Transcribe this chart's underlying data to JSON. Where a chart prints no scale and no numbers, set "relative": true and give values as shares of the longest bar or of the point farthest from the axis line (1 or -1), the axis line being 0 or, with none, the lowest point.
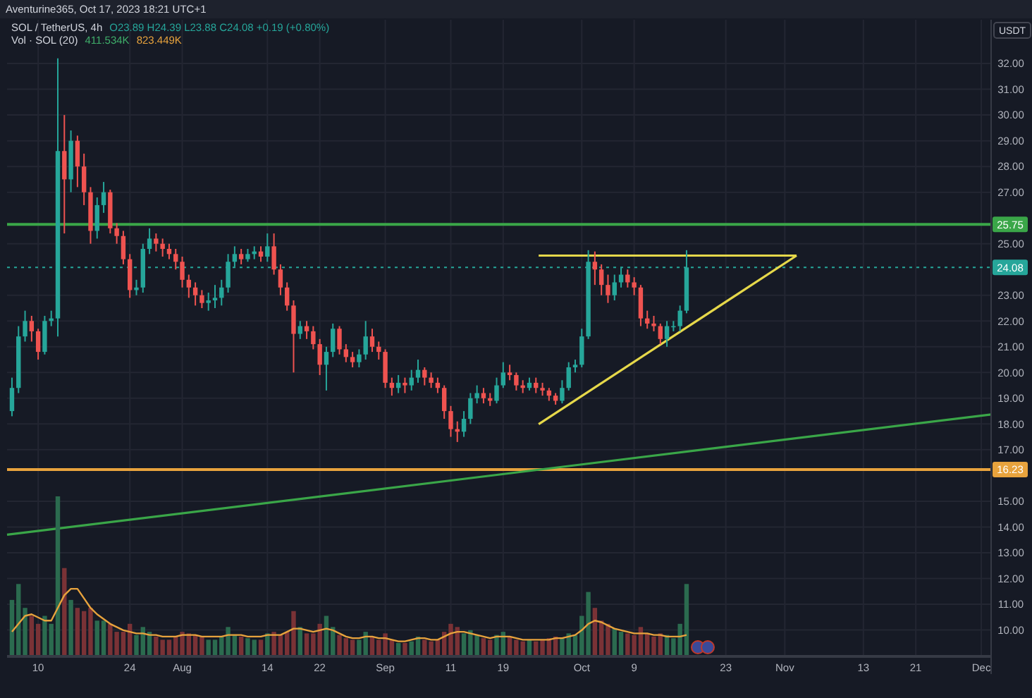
{
  "chart_data": [
    {
      "type": "candlestick",
      "title": "SOL / TetherUS, 4h",
      "subtitle": "O23.89 H24.39 L23.88 C24.08 +0.19 (+0.80%)",
      "ylabel": "USDT",
      "annotations": [
        "Aventurine365, Oct 17, 2023 18:21 UTC+1"
      ],
      "x": [
        "2023-07-06",
        "2023-07-07",
        "2023-07-08",
        "2023-07-09",
        "2023-07-10",
        "2023-07-11",
        "2023-07-12",
        "2023-07-13",
        "2023-07-14",
        "2023-07-15",
        "2023-07-16",
        "2023-07-17",
        "2023-07-18",
        "2023-07-19",
        "2023-07-20",
        "2023-07-21",
        "2023-07-22",
        "2023-07-23",
        "2023-07-24",
        "2023-07-25",
        "2023-07-26",
        "2023-07-27",
        "2023-07-28",
        "2023-07-29",
        "2023-07-30",
        "2023-07-31",
        "2023-08-01",
        "2023-08-02",
        "2023-08-03",
        "2023-08-04",
        "2023-08-05",
        "2023-08-06",
        "2023-08-07",
        "2023-08-08",
        "2023-08-09",
        "2023-08-10",
        "2023-08-11",
        "2023-08-12",
        "2023-08-13",
        "2023-08-14",
        "2023-08-15",
        "2023-08-16",
        "2023-08-17",
        "2023-08-18",
        "2023-08-19",
        "2023-08-20",
        "2023-08-21",
        "2023-08-22",
        "2023-08-23",
        "2023-08-24",
        "2023-08-25",
        "2023-08-26",
        "2023-08-27",
        "2023-08-28",
        "2023-08-29",
        "2023-08-30",
        "2023-08-31",
        "2023-09-01",
        "2023-09-02",
        "2023-09-03",
        "2023-09-04",
        "2023-09-05",
        "2023-09-06",
        "2023-09-07",
        "2023-09-08",
        "2023-09-09",
        "2023-09-10",
        "2023-09-11",
        "2023-09-12",
        "2023-09-13",
        "2023-09-14",
        "2023-09-15",
        "2023-09-16",
        "2023-09-17",
        "2023-09-18",
        "2023-09-19",
        "2023-09-20",
        "2023-09-21",
        "2023-09-22",
        "2023-09-23",
        "2023-09-24",
        "2023-09-25",
        "2023-09-26",
        "2023-09-27",
        "2023-09-28",
        "2023-09-29",
        "2023-09-30",
        "2023-10-01",
        "2023-10-02",
        "2023-10-03",
        "2023-10-04",
        "2023-10-05",
        "2023-10-06",
        "2023-10-07",
        "2023-10-08",
        "2023-10-09",
        "2023-10-10",
        "2023-10-11",
        "2023-10-12",
        "2023-10-13",
        "2023-10-14",
        "2023-10-15",
        "2023-10-16",
        "2023-10-17"
      ],
      "ohlc": [
        [
          18.5,
          19.8,
          18.3,
          19.4
        ],
        [
          19.4,
          21.8,
          19.2,
          21.4
        ],
        [
          21.4,
          22.4,
          21.2,
          22.0
        ],
        [
          22.0,
          22.2,
          21.2,
          21.6
        ],
        [
          21.6,
          21.7,
          20.5,
          20.8
        ],
        [
          20.8,
          22.2,
          20.7,
          22.0
        ],
        [
          22.0,
          22.4,
          21.8,
          22.1
        ],
        [
          22.1,
          32.2,
          21.4,
          28.6
        ],
        [
          28.6,
          30.0,
          25.4,
          27.5
        ],
        [
          27.5,
          29.4,
          27.0,
          29.0
        ],
        [
          29.0,
          29.2,
          27.2,
          28.0
        ],
        [
          28.0,
          28.5,
          26.5,
          27.0
        ],
        [
          27.0,
          27.2,
          25.0,
          25.5
        ],
        [
          25.5,
          26.8,
          25.2,
          26.5
        ],
        [
          26.5,
          27.4,
          26.2,
          27.0
        ],
        [
          27.0,
          27.1,
          25.4,
          25.6
        ],
        [
          25.6,
          25.8,
          25.0,
          25.3
        ],
        [
          25.3,
          25.5,
          24.2,
          24.4
        ],
        [
          24.4,
          24.6,
          22.9,
          23.2
        ],
        [
          23.2,
          23.6,
          23.0,
          23.3
        ],
        [
          23.3,
          25.0,
          23.1,
          24.8
        ],
        [
          24.8,
          25.6,
          24.6,
          25.2
        ],
        [
          25.2,
          25.4,
          24.7,
          25.0
        ],
        [
          25.0,
          25.2,
          24.5,
          24.8
        ],
        [
          24.8,
          25.0,
          24.4,
          24.6
        ],
        [
          24.6,
          24.8,
          24.0,
          24.3
        ],
        [
          24.3,
          24.5,
          23.3,
          23.6
        ],
        [
          23.6,
          23.8,
          22.9,
          23.3
        ],
        [
          23.3,
          23.5,
          22.6,
          23.0
        ],
        [
          23.0,
          23.2,
          22.5,
          22.7
        ],
        [
          22.7,
          23.1,
          22.4,
          22.8
        ],
        [
          22.8,
          23.4,
          22.5,
          22.9
        ],
        [
          22.9,
          23.6,
          22.6,
          23.3
        ],
        [
          23.3,
          24.6,
          23.1,
          24.3
        ],
        [
          24.3,
          24.9,
          24.1,
          24.6
        ],
        [
          24.6,
          24.8,
          24.2,
          24.4
        ],
        [
          24.4,
          24.8,
          24.3,
          24.6
        ],
        [
          24.6,
          24.9,
          24.4,
          24.7
        ],
        [
          24.7,
          24.9,
          24.3,
          24.5
        ],
        [
          24.5,
          25.4,
          24.3,
          24.9
        ],
        [
          24.9,
          25.4,
          23.8,
          24.0
        ],
        [
          24.0,
          24.2,
          23.0,
          23.3
        ],
        [
          23.3,
          23.5,
          22.4,
          22.6
        ],
        [
          22.6,
          22.8,
          20.0,
          21.5
        ],
        [
          21.5,
          22.0,
          21.3,
          21.8
        ],
        [
          21.8,
          22.0,
          21.3,
          21.6
        ],
        [
          21.6,
          21.8,
          20.9,
          21.1
        ],
        [
          21.1,
          21.3,
          19.9,
          20.3
        ],
        [
          20.3,
          21.0,
          19.3,
          20.8
        ],
        [
          20.8,
          21.9,
          20.6,
          21.7
        ],
        [
          21.7,
          21.8,
          20.7,
          20.9
        ],
        [
          20.9,
          21.1,
          20.4,
          20.6
        ],
        [
          20.6,
          20.8,
          20.2,
          20.4
        ],
        [
          20.4,
          20.9,
          20.2,
          20.7
        ],
        [
          20.7,
          22.0,
          20.5,
          21.4
        ],
        [
          21.4,
          21.7,
          20.8,
          21.0
        ],
        [
          21.0,
          21.2,
          20.5,
          20.8
        ],
        [
          20.8,
          20.9,
          19.4,
          19.6
        ],
        [
          19.6,
          19.8,
          19.1,
          19.4
        ],
        [
          19.4,
          19.9,
          19.2,
          19.6
        ],
        [
          19.6,
          19.8,
          19.2,
          19.5
        ],
        [
          19.5,
          20.1,
          19.3,
          19.8
        ],
        [
          19.8,
          20.5,
          19.6,
          20.1
        ],
        [
          20.1,
          20.2,
          19.5,
          19.8
        ],
        [
          19.8,
          20.0,
          19.4,
          19.6
        ],
        [
          19.6,
          19.8,
          19.2,
          19.4
        ],
        [
          19.4,
          19.5,
          18.2,
          18.5
        ],
        [
          18.5,
          18.7,
          17.5,
          17.8
        ],
        [
          17.8,
          18.1,
          17.3,
          17.7
        ],
        [
          17.7,
          18.5,
          17.5,
          18.2
        ],
        [
          18.2,
          19.2,
          18.0,
          19.0
        ],
        [
          19.0,
          19.5,
          18.8,
          19.2
        ],
        [
          19.2,
          19.4,
          18.8,
          19.0
        ],
        [
          19.0,
          19.2,
          18.7,
          18.9
        ],
        [
          18.9,
          19.8,
          18.8,
          19.5
        ],
        [
          19.5,
          20.4,
          19.4,
          20.0
        ],
        [
          20.0,
          20.3,
          19.7,
          19.9
        ],
        [
          19.9,
          20.0,
          19.3,
          19.5
        ],
        [
          19.5,
          19.7,
          19.2,
          19.4
        ],
        [
          19.4,
          19.8,
          19.3,
          19.6
        ],
        [
          19.6,
          19.8,
          19.2,
          19.4
        ],
        [
          19.4,
          19.6,
          19.1,
          19.3
        ],
        [
          19.3,
          19.4,
          18.9,
          19.1
        ],
        [
          19.1,
          19.2,
          18.75,
          18.9
        ],
        [
          18.9,
          19.7,
          18.8,
          19.4
        ],
        [
          19.4,
          20.4,
          19.3,
          20.2
        ],
        [
          20.2,
          20.5,
          20.0,
          20.3
        ],
        [
          20.3,
          21.7,
          20.2,
          21.4
        ],
        [
          21.4,
          24.75,
          21.3,
          24.3
        ],
        [
          24.3,
          24.7,
          23.4,
          24.0
        ],
        [
          24.0,
          24.2,
          23.0,
          23.4
        ],
        [
          23.4,
          23.8,
          22.7,
          23.0
        ],
        [
          23.0,
          23.8,
          22.8,
          23.5
        ],
        [
          23.5,
          24.1,
          23.3,
          23.8
        ],
        [
          23.8,
          24.0,
          23.3,
          23.5
        ],
        [
          23.5,
          23.7,
          23.0,
          23.3
        ],
        [
          23.3,
          23.4,
          21.8,
          22.1
        ],
        [
          22.1,
          22.4,
          21.7,
          21.9
        ],
        [
          21.9,
          22.2,
          21.6,
          21.8
        ],
        [
          21.8,
          21.9,
          21.1,
          21.3
        ],
        [
          21.3,
          22.0,
          21.0,
          21.8
        ],
        [
          21.8,
          22.0,
          21.6,
          21.8
        ],
        [
          21.8,
          22.6,
          21.6,
          22.4
        ],
        [
          22.4,
          24.75,
          22.3,
          24.08
        ]
      ],
      "colors": [
        "#26a69a",
        "#26a69a",
        "#26a69a",
        "#ef5350",
        "#ef5350",
        "#26a69a",
        "#26a69a",
        "#26a69a",
        "#ef5350",
        "#26a69a",
        "#ef5350",
        "#ef5350",
        "#ef5350",
        "#26a69a",
        "#26a69a",
        "#ef5350",
        "#ef5350",
        "#ef5350",
        "#ef5350",
        "#26a69a",
        "#26a69a",
        "#26a69a",
        "#ef5350",
        "#ef5350",
        "#ef5350",
        "#ef5350",
        "#ef5350",
        "#ef5350",
        "#ef5350",
        "#ef5350",
        "#26a69a",
        "#26a69a",
        "#26a69a",
        "#26a69a",
        "#26a69a",
        "#ef5350",
        "#26a69a",
        "#26a69a",
        "#ef5350",
        "#26a69a",
        "#ef5350",
        "#ef5350",
        "#ef5350",
        "#ef5350",
        "#26a69a",
        "#ef5350",
        "#ef5350",
        "#ef5350",
        "#26a69a",
        "#26a69a",
        "#ef5350",
        "#ef5350",
        "#ef5350",
        "#26a69a",
        "#26a69a",
        "#ef5350",
        "#ef5350",
        "#ef5350",
        "#ef5350",
        "#26a69a",
        "#ef5350",
        "#26a69a",
        "#26a69a",
        "#ef5350",
        "#ef5350",
        "#ef5350",
        "#ef5350",
        "#ef5350",
        "#ef5350",
        "#26a69a",
        "#26a69a",
        "#26a69a",
        "#ef5350",
        "#ef5350",
        "#26a69a",
        "#26a69a",
        "#ef5350",
        "#ef5350",
        "#ef5350",
        "#26a69a",
        "#ef5350",
        "#ef5350",
        "#ef5350",
        "#ef5350",
        "#26a69a",
        "#26a69a",
        "#26a69a",
        "#26a69a",
        "#26a69a",
        "#ef5350",
        "#ef5350",
        "#ef5350",
        "#26a69a",
        "#26a69a",
        "#ef5350",
        "#ef5350",
        "#ef5350",
        "#ef5350",
        "#ef5350",
        "#ef5350",
        "#26a69a",
        "#26a69a",
        "#26a69a",
        "#26a69a"
      ],
      "xlim": [
        "2023-07-05T06:00",
        "2023-12-02T12:00"
      ],
      "xticks": [
        {
          "value": "2023-07-10",
          "label": "10"
        },
        {
          "value": "2023-07-24",
          "label": "24"
        },
        {
          "value": "2023-08-01",
          "label": "Aug"
        },
        {
          "value": "2023-08-14",
          "label": "14"
        },
        {
          "value": "2023-08-22",
          "label": "22"
        },
        {
          "value": "2023-09-01",
          "label": "Sep"
        },
        {
          "value": "2023-09-11",
          "label": "11"
        },
        {
          "value": "2023-09-19",
          "label": "19"
        },
        {
          "value": "2023-10-01",
          "label": "Oct"
        },
        {
          "value": "2023-10-09",
          "label": "9"
        },
        {
          "value": "2023-10-23",
          "label": "23"
        },
        {
          "value": "2023-11-01",
          "label": "Nov"
        },
        {
          "value": "2023-11-13",
          "label": "13"
        },
        {
          "value": "2023-11-21",
          "label": "21"
        },
        {
          "value": "2023-12-01",
          "label": "Dec"
        }
      ],
      "ylim": [
        9.0,
        33.7
      ],
      "yticks": [
        {
          "value": 10,
          "label": "10.00"
        },
        {
          "value": 11,
          "label": "11.00"
        },
        {
          "value": 12,
          "label": "12.00"
        },
        {
          "value": 13,
          "label": "13.00"
        },
        {
          "value": 14,
          "label": "14.00"
        },
        {
          "value": 15,
          "label": "15.00"
        },
        {
          "value": 17,
          "label": "17.00"
        },
        {
          "value": 18,
          "label": "18.00"
        },
        {
          "value": 19,
          "label": "19.00"
        },
        {
          "value": 20,
          "label": "20.00"
        },
        {
          "value": 21,
          "label": "21.00"
        },
        {
          "value": 22,
          "label": "22.00"
        },
        {
          "value": 23,
          "label": "23.00"
        },
        {
          "value": 25,
          "label": "25.00"
        },
        {
          "value": 27,
          "label": "27.00"
        },
        {
          "value": 28,
          "label": "28.00"
        },
        {
          "value": 29,
          "label": "29.00"
        },
        {
          "value": 30,
          "label": "30.00"
        },
        {
          "value": 31,
          "label": "31.00"
        },
        {
          "value": 32,
          "label": "32.00"
        }
      ],
      "grid": true,
      "ref_lines": [
        {
          "axis": "y",
          "value": 25.75,
          "label": "25.75",
          "color": "#3aa648",
          "line_style": "solid"
        },
        {
          "axis": "y",
          "value": 16.23,
          "label": "16.23",
          "color": "#e8a33d",
          "line_style": "solid"
        },
        {
          "axis": "y",
          "value": 24.08,
          "label": "24.08",
          "color": "#26a69a",
          "line_style": "dotted"
        }
      ],
      "series": [
        {
          "type": "line",
          "color": "#e6d84a",
          "x": [
            "2023-09-24T10:00",
            "2023-11-02T19:00"
          ],
          "values": [
            24.54,
            24.54
          ]
        },
        {
          "type": "line",
          "color": "#e6d84a",
          "x": [
            "2023-09-24T10:00",
            "2023-11-02T19:00"
          ],
          "values": [
            17.99,
            24.54
          ]
        },
        {
          "type": "line",
          "color": "#3aa648",
          "x": [
            "2023-07-05T06:00",
            "2023-12-02T12:00"
          ],
          "values": [
            13.7,
            18.37
          ]
        }
      ]
    },
    {
      "type": "bar",
      "title": "Vol · SOL (20)",
      "annotations": [
        "411.534K",
        "823.449K"
      ],
      "relative": true,
      "xlim": [
        "2023-07-05T06:00",
        "2023-12-02T12:00"
      ],
      "x": [
        "2023-07-06",
        "2023-07-07",
        "2023-07-08",
        "2023-07-09",
        "2023-07-10",
        "2023-07-11",
        "2023-07-12",
        "2023-07-13",
        "2023-07-14",
        "2023-07-15",
        "2023-07-16",
        "2023-07-17",
        "2023-07-18",
        "2023-07-19",
        "2023-07-20",
        "2023-07-21",
        "2023-07-22",
        "2023-07-23",
        "2023-07-24",
        "2023-07-25",
        "2023-07-26",
        "2023-07-27",
        "2023-07-28",
        "2023-07-29",
        "2023-07-30",
        "2023-07-31",
        "2023-08-01",
        "2023-08-02",
        "2023-08-03",
        "2023-08-04",
        "2023-08-05",
        "2023-08-06",
        "2023-08-07",
        "2023-08-08",
        "2023-08-09",
        "2023-08-10",
        "2023-08-11",
        "2023-08-12",
        "2023-08-13",
        "2023-08-14",
        "2023-08-15",
        "2023-08-16",
        "2023-08-17",
        "2023-08-18",
        "2023-08-19",
        "2023-08-20",
        "2023-08-21",
        "2023-08-22",
        "2023-08-23",
        "2023-08-24",
        "2023-08-25",
        "2023-08-26",
        "2023-08-27",
        "2023-08-28",
        "2023-08-29",
        "2023-08-30",
        "2023-08-31",
        "2023-09-01",
        "2023-09-02",
        "2023-09-03",
        "2023-09-04",
        "2023-09-05",
        "2023-09-06",
        "2023-09-07",
        "2023-09-08",
        "2023-09-09",
        "2023-09-10",
        "2023-09-11",
        "2023-09-12",
        "2023-09-13",
        "2023-09-14",
        "2023-09-15",
        "2023-09-16",
        "2023-09-17",
        "2023-09-18",
        "2023-09-19",
        "2023-09-20",
        "2023-09-21",
        "2023-09-22",
        "2023-09-23",
        "2023-09-24",
        "2023-09-25",
        "2023-09-26",
        "2023-09-27",
        "2023-09-28",
        "2023-09-29",
        "2023-09-30",
        "2023-10-01",
        "2023-10-02",
        "2023-10-03",
        "2023-10-04",
        "2023-10-05",
        "2023-10-06",
        "2023-10-07",
        "2023-10-08",
        "2023-10-09",
        "2023-10-10",
        "2023-10-11",
        "2023-10-12",
        "2023-10-13",
        "2023-10-14",
        "2023-10-15",
        "2023-10-16",
        "2023-10-17"
      ],
      "series": [
        {
          "type": "bar",
          "colors": [
            "#2b6b4f",
            "#2b6b4f",
            "#2b6b4f",
            "#7a3236",
            "#7a3236",
            "#2b6b4f",
            "#2b6b4f",
            "#2b6b4f",
            "#7a3236",
            "#2b6b4f",
            "#7a3236",
            "#7a3236",
            "#7a3236",
            "#2b6b4f",
            "#2b6b4f",
            "#7a3236",
            "#7a3236",
            "#7a3236",
            "#7a3236",
            "#2b6b4f",
            "#2b6b4f",
            "#2b6b4f",
            "#7a3236",
            "#7a3236",
            "#7a3236",
            "#7a3236",
            "#7a3236",
            "#7a3236",
            "#7a3236",
            "#7a3236",
            "#2b6b4f",
            "#2b6b4f",
            "#2b6b4f",
            "#2b6b4f",
            "#2b6b4f",
            "#7a3236",
            "#2b6b4f",
            "#2b6b4f",
            "#7a3236",
            "#2b6b4f",
            "#7a3236",
            "#7a3236",
            "#7a3236",
            "#7a3236",
            "#2b6b4f",
            "#7a3236",
            "#7a3236",
            "#7a3236",
            "#2b6b4f",
            "#2b6b4f",
            "#7a3236",
            "#7a3236",
            "#7a3236",
            "#2b6b4f",
            "#2b6b4f",
            "#7a3236",
            "#7a3236",
            "#7a3236",
            "#7a3236",
            "#2b6b4f",
            "#7a3236",
            "#2b6b4f",
            "#2b6b4f",
            "#7a3236",
            "#7a3236",
            "#7a3236",
            "#7a3236",
            "#7a3236",
            "#7a3236",
            "#2b6b4f",
            "#2b6b4f",
            "#2b6b4f",
            "#7a3236",
            "#7a3236",
            "#2b6b4f",
            "#2b6b4f",
            "#7a3236",
            "#7a3236",
            "#7a3236",
            "#2b6b4f",
            "#7a3236",
            "#7a3236",
            "#7a3236",
            "#7a3236",
            "#2b6b4f",
            "#2b6b4f",
            "#2b6b4f",
            "#2b6b4f",
            "#2b6b4f",
            "#7a3236",
            "#7a3236",
            "#7a3236",
            "#2b6b4f",
            "#2b6b4f",
            "#7a3236",
            "#7a3236",
            "#7a3236",
            "#7a3236",
            "#7a3236",
            "#7a3236",
            "#2b6b4f",
            "#2b6b4f",
            "#2b6b4f",
            "#2b6b4f"
          ],
          "values": [
            0.35,
            0.45,
            0.3,
            0.25,
            0.2,
            0.25,
            0.2,
            1.0,
            0.55,
            0.35,
            0.3,
            0.28,
            0.3,
            0.22,
            0.22,
            0.2,
            0.15,
            0.15,
            0.2,
            0.13,
            0.18,
            0.15,
            0.12,
            0.1,
            0.1,
            0.12,
            0.15,
            0.14,
            0.13,
            0.12,
            0.1,
            0.1,
            0.12,
            0.18,
            0.13,
            0.12,
            0.11,
            0.1,
            0.1,
            0.14,
            0.15,
            0.13,
            0.15,
            0.28,
            0.18,
            0.14,
            0.14,
            0.2,
            0.25,
            0.18,
            0.13,
            0.11,
            0.1,
            0.1,
            0.15,
            0.12,
            0.1,
            0.14,
            0.1,
            0.08,
            0.08,
            0.09,
            0.12,
            0.1,
            0.09,
            0.1,
            0.15,
            0.2,
            0.18,
            0.14,
            0.16,
            0.13,
            0.11,
            0.1,
            0.13,
            0.15,
            0.12,
            0.1,
            0.09,
            0.1,
            0.09,
            0.1,
            0.11,
            0.12,
            0.11,
            0.14,
            0.13,
            0.25,
            0.4,
            0.3,
            0.22,
            0.2,
            0.17,
            0.15,
            0.14,
            0.13,
            0.18,
            0.14,
            0.12,
            0.14,
            0.13,
            0.11,
            0.2,
            0.45
          ]
        },
        {
          "type": "line",
          "color": "#e8a33d",
          "values": [
            0.15,
            0.2,
            0.25,
            0.26,
            0.24,
            0.22,
            0.22,
            0.3,
            0.38,
            0.42,
            0.42,
            0.36,
            0.3,
            0.26,
            0.23,
            0.2,
            0.18,
            0.16,
            0.15,
            0.14,
            0.14,
            0.13,
            0.13,
            0.12,
            0.12,
            0.12,
            0.13,
            0.13,
            0.13,
            0.12,
            0.12,
            0.12,
            0.12,
            0.13,
            0.13,
            0.13,
            0.12,
            0.12,
            0.12,
            0.13,
            0.13,
            0.13,
            0.15,
            0.17,
            0.17,
            0.16,
            0.15,
            0.16,
            0.17,
            0.16,
            0.14,
            0.12,
            0.11,
            0.11,
            0.12,
            0.12,
            0.11,
            0.11,
            0.1,
            0.09,
            0.09,
            0.1,
            0.11,
            0.11,
            0.1,
            0.1,
            0.12,
            0.14,
            0.15,
            0.15,
            0.14,
            0.13,
            0.12,
            0.11,
            0.12,
            0.12,
            0.12,
            0.11,
            0.1,
            0.1,
            0.1,
            0.1,
            0.1,
            0.11,
            0.11,
            0.12,
            0.13,
            0.16,
            0.2,
            0.22,
            0.21,
            0.19,
            0.17,
            0.16,
            0.15,
            0.14,
            0.14,
            0.14,
            0.13,
            0.13,
            0.12,
            0.12,
            0.12,
            0.13
          ]
        }
      ]
    }
  ]
}
